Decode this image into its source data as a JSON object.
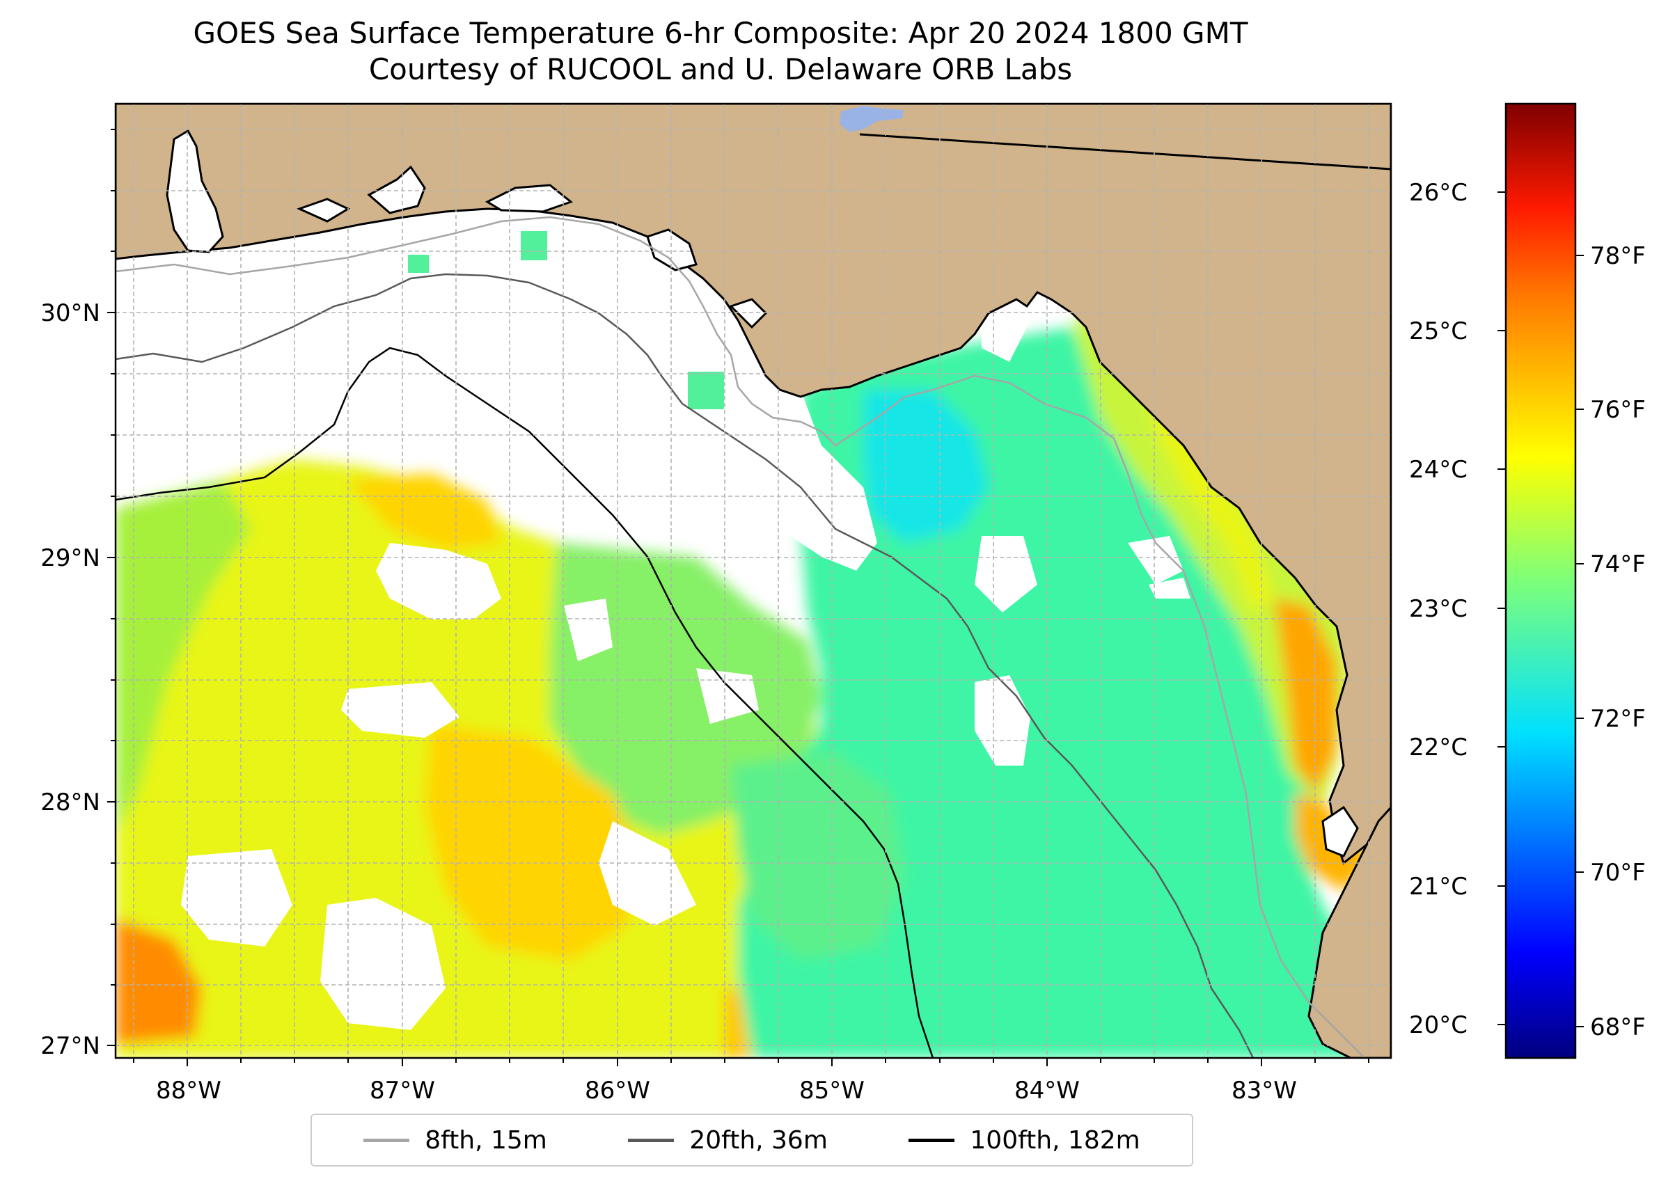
{
  "title": {
    "line1": "GOES Sea Surface Temperature 6-hr Composite: Apr 20 2024 1800 GMT",
    "line2": "Courtesy of RUCOOL and U. Delaware ORB Labs"
  },
  "map": {
    "longitude_labels": [
      "88°W",
      "87°W",
      "86°W",
      "85°W",
      "84°W",
      "83°W"
    ],
    "latitude_labels": [
      "30°N",
      "29°N",
      "28°N",
      "27°N"
    ],
    "extent": {
      "lon": [
        -88.33,
        -82.4
      ],
      "lat": [
        26.95,
        30.85
      ]
    },
    "colors": {
      "land": "#d2b48c",
      "no_data": "#ffffff",
      "lake": "#99b3e6",
      "grid": "#b3b3b3"
    }
  },
  "colorbar": {
    "celsius_labels": [
      "26°C",
      "25°C",
      "24°C",
      "23°C",
      "22°C",
      "21°C",
      "20°C"
    ],
    "fahrenheit_labels": [
      "78°F",
      "76°F",
      "74°F",
      "72°F",
      "70°F",
      "68°F"
    ],
    "range_c": [
      19.8,
      26.6
    ],
    "colormap": "jet"
  },
  "legend": {
    "items": [
      {
        "label": "8fth, 15m",
        "color": "#a6a6a6"
      },
      {
        "label": "20fth, 36m",
        "color": "#595959"
      },
      {
        "label": "100fth, 182m",
        "color": "#000000"
      }
    ]
  }
}
